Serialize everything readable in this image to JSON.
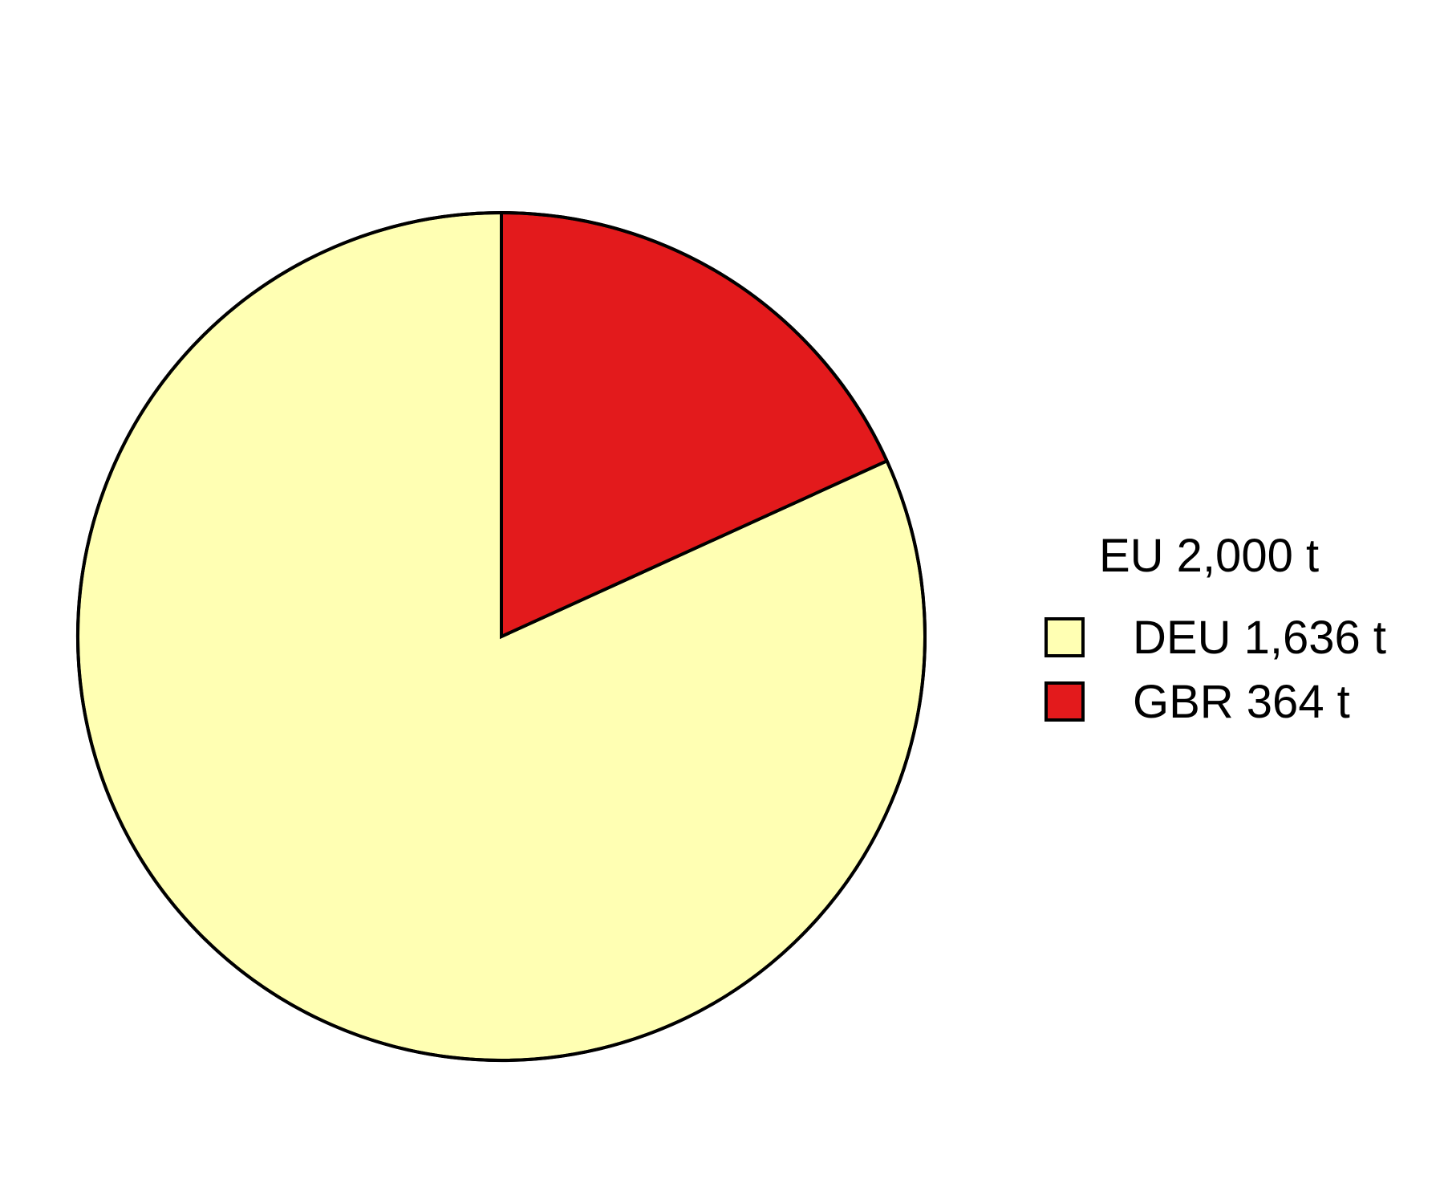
{
  "chart_data": {
    "type": "pie",
    "legend_title": "EU 2,000 t",
    "legend_placement": "right",
    "start": "12 o'clock",
    "direction": "counterclockwise",
    "slices": [
      {
        "label": "DEU 1,636 t",
        "category": "DEU",
        "value": 1636,
        "color": "#FFFFB3"
      },
      {
        "label": "GBR 364 t",
        "category": "GBR",
        "value": 364,
        "color": "#E31A1C"
      }
    ]
  }
}
